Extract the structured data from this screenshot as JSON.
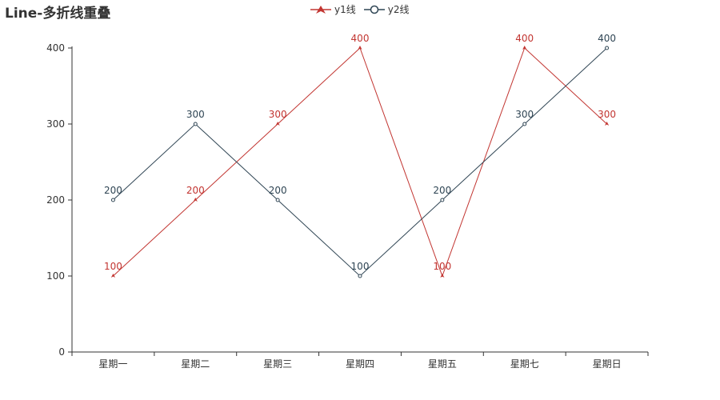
{
  "chart_data": {
    "type": "line",
    "title": "Line-多折线重叠",
    "categories": [
      "星期一",
      "星期二",
      "星期三",
      "星期四",
      "星期五",
      "星期七",
      "星期日"
    ],
    "series": [
      {
        "name": "y1线",
        "values": [
          100,
          200,
          300,
          400,
          100,
          400,
          300
        ],
        "color": "#c23531",
        "symbol": "triangle"
      },
      {
        "name": "y2线",
        "values": [
          200,
          300,
          200,
          100,
          200,
          300,
          400
        ],
        "color": "#2f4554",
        "symbol": "empty-circle"
      }
    ],
    "ylim": [
      0,
      400
    ],
    "yticks": [
      0,
      100,
      200,
      300,
      400
    ],
    "xlabel": "",
    "ylabel": "",
    "legend": "top-center",
    "grid": false,
    "show_data_labels": true
  }
}
